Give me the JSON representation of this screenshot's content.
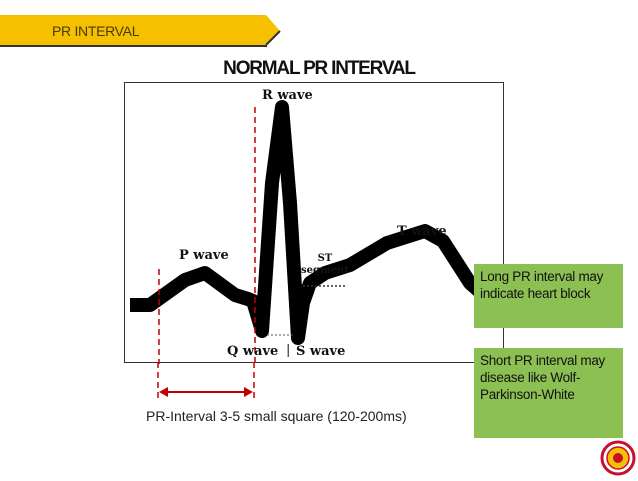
{
  "banner": {
    "text": "PR INTERVAL",
    "color": "#f5c000"
  },
  "title": "NORMAL PR INTERVAL",
  "waves": {
    "r": "R wave",
    "p": "P wave",
    "t": "T wave",
    "st_line1": "ST",
    "st_line2": "segment",
    "q": "Q wave",
    "separator": "|",
    "s": "S wave"
  },
  "notes": {
    "long": "Long PR interval may indicate heart block",
    "short": "Short PR interval may disease like Wolf-Parkinson-White",
    "color": "#8dc053"
  },
  "caption": "PR-Interval 3-5 small square (120-200ms)",
  "colors": {
    "interval_marker": "#c00000",
    "trace": "#000000"
  },
  "logo_icon": "emblem-icon"
}
